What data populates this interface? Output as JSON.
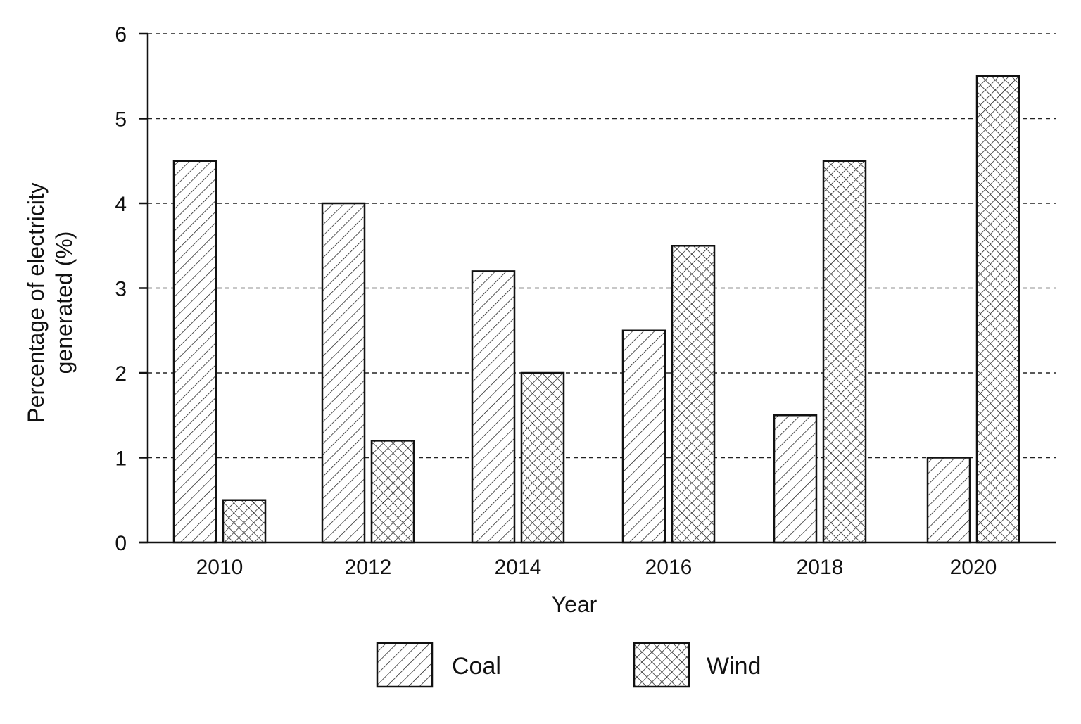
{
  "chart_data": {
    "type": "bar",
    "title": "",
    "xlabel": "Year",
    "ylabel_lines": [
      "Percentage of electricity",
      "generated (%)"
    ],
    "categories": [
      "2010",
      "2012",
      "2014",
      "2016",
      "2018",
      "2020"
    ],
    "series": [
      {
        "name": "Coal",
        "pattern": "diagonal-hatch",
        "values": [
          4.5,
          4.0,
          3.2,
          2.5,
          1.5,
          1.0
        ]
      },
      {
        "name": "Wind",
        "pattern": "cross-hatch",
        "values": [
          0.5,
          1.2,
          2.0,
          3.5,
          4.5,
          5.5
        ]
      }
    ],
    "ylim": [
      0,
      6
    ],
    "yticks": [
      "0",
      "1",
      "2",
      "3",
      "4",
      "5",
      "6"
    ],
    "grid": "horizontal dashed",
    "legend_position": "bottom-center",
    "colors": {
      "ink": "#111111",
      "background": "#ffffff"
    }
  }
}
